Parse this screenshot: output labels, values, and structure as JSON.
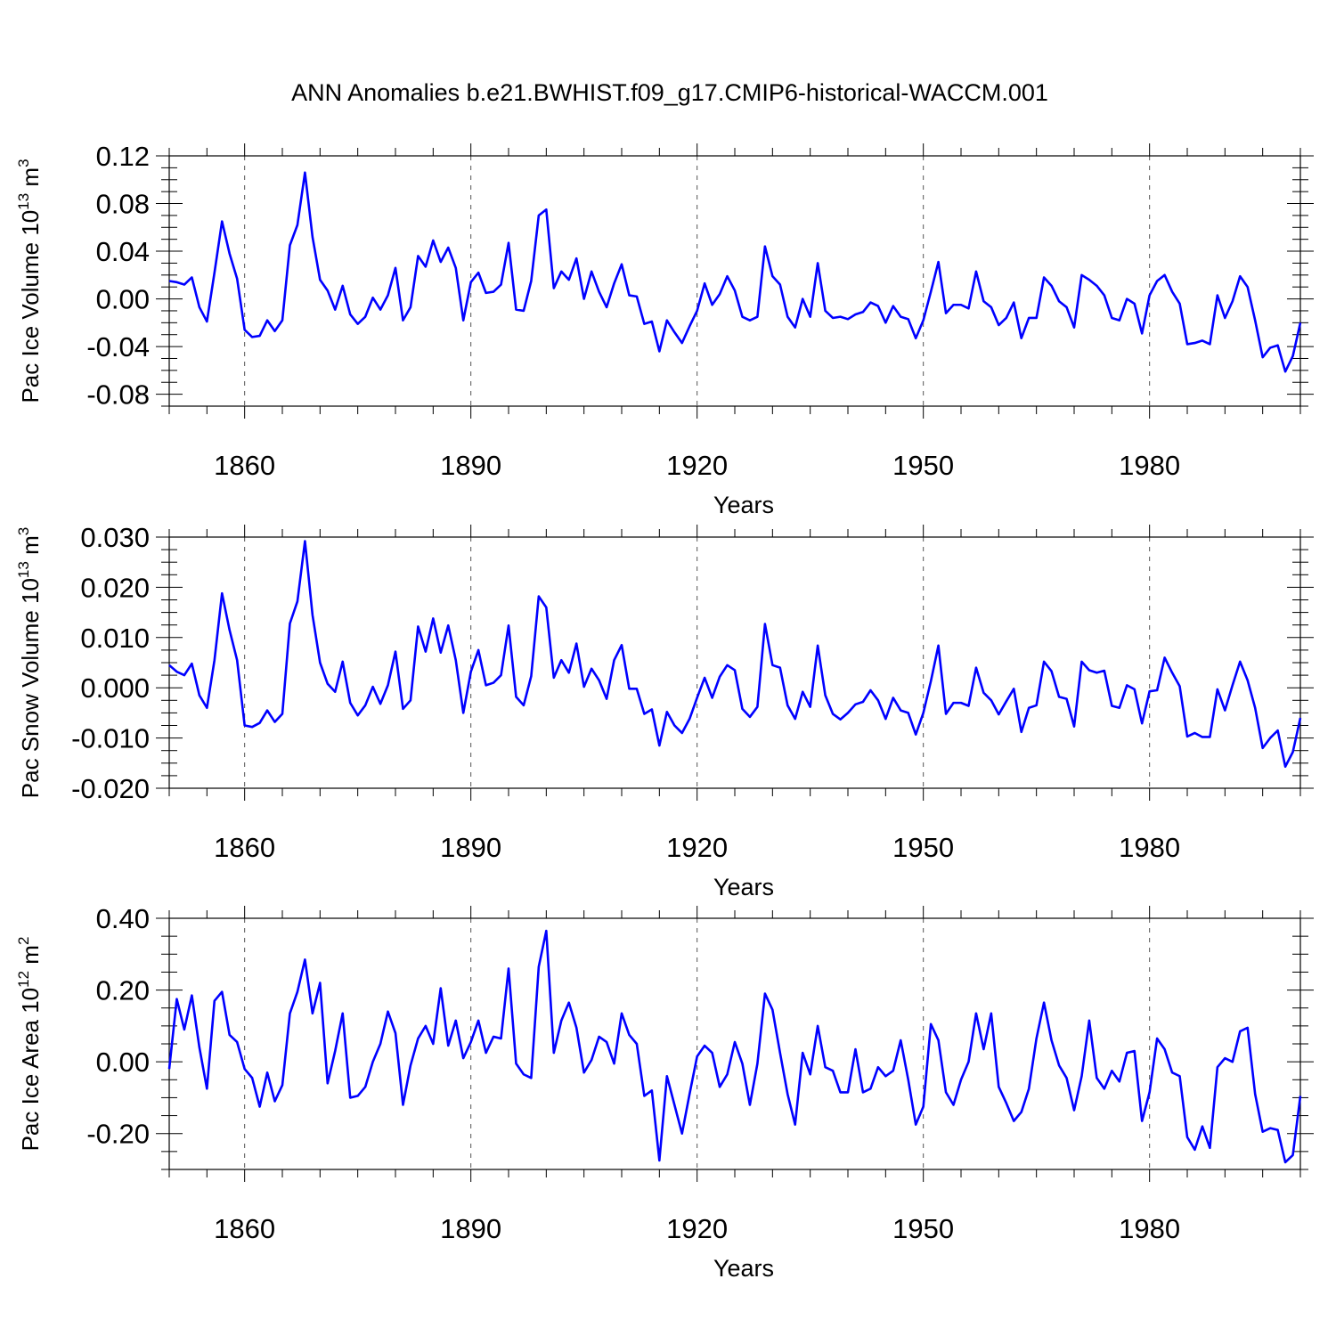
{
  "title": "ANN Anomalies b.e21.BWHIST.f09_g17.CMIP6-historical-WACCM.001",
  "colors": {
    "line": "#0000ff",
    "axes": "#000000",
    "grid": "#555555"
  },
  "chart_data": [
    {
      "type": "line",
      "ylabel": "Pac Ice Volume 10",
      "ylabel_sup": "13",
      "ylabel_unit": "m",
      "ylabel_unit_sup": "3",
      "xlabel": "Years",
      "xlim": [
        1850,
        2000
      ],
      "ylim": [
        -0.09,
        0.12
      ],
      "yticks": [
        0.12,
        0.08,
        0.04,
        0.0,
        -0.04,
        -0.08
      ],
      "ytick_labels": [
        "0.12",
        "0.08",
        "0.04",
        "0.00",
        "-0.04",
        "-0.08"
      ],
      "xticks": [
        1860,
        1890,
        1920,
        1950,
        1980
      ],
      "xtick_labels": [
        "1860",
        "1890",
        "1920",
        "1950",
        "1980"
      ],
      "grid": "vertical dashed at major x ticks",
      "x_start": 1850,
      "series": [
        {
          "values": [
            0.015,
            0.014,
            0.012,
            0.018,
            -0.007,
            -0.019,
            0.022,
            0.065,
            0.038,
            0.017,
            -0.026,
            -0.032,
            -0.031,
            -0.018,
            -0.027,
            -0.018,
            0.045,
            0.062,
            0.106,
            0.052,
            0.016,
            0.007,
            -0.009,
            0.011,
            -0.013,
            -0.021,
            -0.015,
            0.001,
            -0.009,
            0.003,
            0.026,
            -0.018,
            -0.007,
            0.036,
            0.027,
            0.049,
            0.031,
            0.043,
            0.026,
            -0.018,
            0.014,
            0.022,
            0.005,
            0.006,
            0.012,
            0.047,
            -0.009,
            -0.01,
            0.015,
            0.07,
            0.075,
            0.009,
            0.023,
            0.016,
            0.034,
            0.0,
            0.023,
            0.006,
            -0.007,
            0.013,
            0.029,
            0.003,
            0.002,
            -0.021,
            -0.019,
            -0.044,
            -0.018,
            -0.028,
            -0.037,
            -0.023,
            -0.01,
            0.013,
            -0.005,
            0.004,
            0.019,
            0.007,
            -0.015,
            -0.018,
            -0.015,
            0.044,
            0.019,
            0.012,
            -0.015,
            -0.024,
            0.0,
            -0.015,
            0.03,
            -0.01,
            -0.016,
            -0.015,
            -0.017,
            -0.013,
            -0.011,
            -0.003,
            -0.006,
            -0.02,
            -0.006,
            -0.015,
            -0.017,
            -0.033,
            -0.018,
            0.006,
            0.031,
            -0.012,
            -0.005,
            -0.005,
            -0.008,
            0.023,
            -0.002,
            -0.007,
            -0.022,
            -0.016,
            -0.003,
            -0.033,
            -0.016,
            -0.016,
            0.018,
            0.011,
            -0.002,
            -0.007,
            -0.024,
            0.02,
            0.016,
            0.011,
            0.003,
            -0.016,
            -0.018,
            0.0,
            -0.004,
            -0.029,
            0.003,
            0.015,
            0.02,
            0.006,
            -0.004,
            -0.038,
            -0.037,
            -0.035,
            -0.038,
            0.003,
            -0.016,
            -0.002,
            0.019,
            0.01,
            -0.018,
            -0.049,
            -0.041,
            -0.039,
            -0.061,
            -0.048,
            -0.02
          ]
        }
      ]
    },
    {
      "type": "line",
      "ylabel": "Pac Snow Volume 10",
      "ylabel_sup": "13",
      "ylabel_unit": "m",
      "ylabel_unit_sup": "3",
      "xlabel": "Years",
      "xlim": [
        1850,
        2000
      ],
      "ylim": [
        -0.02,
        0.03
      ],
      "yticks": [
        0.03,
        0.02,
        0.01,
        0.0,
        -0.01,
        -0.02
      ],
      "ytick_labels": [
        "0.030",
        "0.020",
        "0.010",
        "0.000",
        "-0.010",
        "-0.020"
      ],
      "xticks": [
        1860,
        1890,
        1920,
        1950,
        1980
      ],
      "xtick_labels": [
        "1860",
        "1890",
        "1920",
        "1950",
        "1980"
      ],
      "grid": "vertical dashed at major x ticks",
      "x_start": 1850,
      "series": [
        {
          "values": [
            0.0045,
            0.0032,
            0.0025,
            0.0048,
            -0.0015,
            -0.004,
            0.0055,
            0.0188,
            0.0115,
            0.0055,
            -0.0075,
            -0.0078,
            -0.007,
            -0.0045,
            -0.0068,
            -0.0052,
            0.0128,
            0.0172,
            0.0292,
            0.0145,
            0.005,
            0.0008,
            -0.0008,
            0.0052,
            -0.003,
            -0.0055,
            -0.0035,
            0.0002,
            -0.0032,
            0.0005,
            0.0072,
            -0.0042,
            -0.0025,
            0.0122,
            0.0072,
            0.0138,
            0.007,
            0.0124,
            0.0055,
            -0.005,
            0.0032,
            0.0075,
            0.0005,
            0.001,
            0.0025,
            0.0124,
            -0.0018,
            -0.0035,
            0.0023,
            0.0182,
            0.016,
            0.002,
            0.0055,
            0.003,
            0.0088,
            0.0002,
            0.0038,
            0.0015,
            -0.0022,
            0.0055,
            0.0085,
            -0.0002,
            -0.0002,
            -0.0052,
            -0.0043,
            -0.0115,
            -0.0048,
            -0.0075,
            -0.009,
            -0.0062,
            -0.002,
            0.002,
            -0.002,
            0.0022,
            0.0045,
            0.0035,
            -0.0042,
            -0.0058,
            -0.0038,
            0.0127,
            0.0045,
            0.004,
            -0.0035,
            -0.0062,
            -0.0008,
            -0.0038,
            0.0084,
            -0.0015,
            -0.0052,
            -0.0063,
            -0.005,
            -0.0033,
            -0.0028,
            -0.0005,
            -0.0025,
            -0.0062,
            -0.002,
            -0.0045,
            -0.005,
            -0.0093,
            -0.005,
            0.0013,
            0.0084,
            -0.0052,
            -0.003,
            -0.003,
            -0.0036,
            0.004,
            -0.001,
            -0.0025,
            -0.0053,
            -0.0027,
            -0.0002,
            -0.0088,
            -0.004,
            -0.0035,
            0.0052,
            0.0033,
            -0.0018,
            -0.0022,
            -0.0077,
            0.0052,
            0.0035,
            0.003,
            0.0034,
            -0.0036,
            -0.004,
            0.0005,
            -0.0003,
            -0.0071,
            -0.0007,
            -0.0005,
            0.006,
            0.003,
            0.0003,
            -0.0097,
            -0.009,
            -0.0098,
            -0.0098,
            -0.0003,
            -0.0045,
            0.0005,
            0.0052,
            0.0015,
            -0.004,
            -0.012,
            -0.01,
            -0.0085,
            -0.0157,
            -0.0128,
            -0.006
          ]
        }
      ]
    },
    {
      "type": "line",
      "ylabel": "Pac Ice Area 10",
      "ylabel_sup": "12",
      "ylabel_unit": "m",
      "ylabel_unit_sup": "2",
      "xlabel": "Years",
      "xlim": [
        1850,
        2000
      ],
      "ylim": [
        -0.3,
        0.4
      ],
      "yticks": [
        0.4,
        0.2,
        0.0,
        -0.2
      ],
      "ytick_labels": [
        "0.40",
        "0.20",
        "0.00",
        "-0.20"
      ],
      "xticks": [
        1860,
        1890,
        1920,
        1950,
        1980
      ],
      "xtick_labels": [
        "1860",
        "1890",
        "1920",
        "1950",
        "1980"
      ],
      "grid": "vertical dashed at major x ticks",
      "x_start": 1850,
      "series": [
        {
          "values": [
            -0.02,
            0.175,
            0.09,
            0.185,
            0.04,
            -0.075,
            0.17,
            0.195,
            0.075,
            0.055,
            -0.02,
            -0.045,
            -0.125,
            -0.03,
            -0.11,
            -0.065,
            0.135,
            0.195,
            0.285,
            0.135,
            0.22,
            -0.06,
            0.03,
            0.135,
            -0.1,
            -0.095,
            -0.07,
            0.0,
            0.05,
            0.14,
            0.08,
            -0.12,
            -0.01,
            0.065,
            0.1,
            0.05,
            0.205,
            0.045,
            0.115,
            0.01,
            0.055,
            0.115,
            0.025,
            0.07,
            0.065,
            0.26,
            -0.005,
            -0.035,
            -0.045,
            0.265,
            0.365,
            0.025,
            0.115,
            0.165,
            0.095,
            -0.03,
            0.005,
            0.07,
            0.055,
            -0.005,
            0.135,
            0.075,
            0.05,
            -0.095,
            -0.08,
            -0.275,
            -0.04,
            -0.12,
            -0.2,
            -0.09,
            0.015,
            0.045,
            0.025,
            -0.07,
            -0.035,
            0.055,
            -0.005,
            -0.12,
            -0.005,
            0.19,
            0.145,
            0.025,
            -0.09,
            -0.175,
            0.025,
            -0.035,
            0.1,
            -0.015,
            -0.025,
            -0.085,
            -0.085,
            0.035,
            -0.085,
            -0.075,
            -0.015,
            -0.04,
            -0.025,
            0.06,
            -0.05,
            -0.175,
            -0.125,
            0.105,
            0.06,
            -0.085,
            -0.12,
            -0.05,
            0.0,
            0.135,
            0.035,
            0.135,
            -0.07,
            -0.115,
            -0.165,
            -0.14,
            -0.075,
            0.065,
            0.165,
            0.06,
            -0.01,
            -0.045,
            -0.135,
            -0.04,
            0.115,
            -0.045,
            -0.075,
            -0.025,
            -0.055,
            0.025,
            0.03,
            -0.165,
            -0.085,
            0.065,
            0.035,
            -0.03,
            -0.04,
            -0.21,
            -0.245,
            -0.18,
            -0.24,
            -0.015,
            0.01,
            0.0,
            0.085,
            0.095,
            -0.09,
            -0.195,
            -0.185,
            -0.19,
            -0.28,
            -0.26,
            -0.095
          ]
        }
      ]
    }
  ]
}
